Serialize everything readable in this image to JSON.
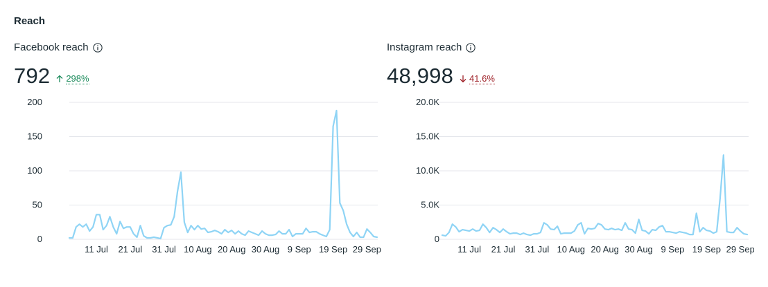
{
  "section": {
    "title": "Reach"
  },
  "colors": {
    "line": "#8fd4f5",
    "up": "#1a8a5a",
    "down": "#a0232a",
    "grid": "#e4e6eb"
  },
  "facebook": {
    "label": "Facebook reach",
    "info_icon": "info-icon",
    "value": "792",
    "delta": {
      "direction": "up",
      "text": "298%",
      "icon": "arrow-up-icon"
    }
  },
  "instagram": {
    "label": "Instagram reach",
    "info_icon": "info-icon",
    "value": "48,998",
    "delta": {
      "direction": "down",
      "text": "41.6%",
      "icon": "arrow-down-icon"
    }
  },
  "chart_data": [
    {
      "type": "line",
      "ylim": [
        0,
        200
      ],
      "yticks": [
        0,
        50,
        100,
        150,
        200
      ],
      "ytick_labels": [
        "0",
        "50",
        "100",
        "150",
        "200"
      ],
      "xtick_labels": [
        "11 Jul",
        "21 Jul",
        "31 Jul",
        "10 Aug",
        "20 Aug",
        "30 Aug",
        "9 Sep",
        "19 Sep",
        "29 Sep"
      ],
      "xtick_index": [
        8,
        18,
        28,
        38,
        48,
        58,
        68,
        78,
        88
      ],
      "grid": true,
      "values": [
        2,
        2,
        18,
        22,
        18,
        22,
        12,
        18,
        36,
        36,
        14,
        20,
        33,
        18,
        8,
        26,
        16,
        18,
        18,
        8,
        3,
        20,
        5,
        2,
        2,
        3,
        2,
        1,
        17,
        20,
        21,
        33,
        70,
        98,
        25,
        10,
        20,
        14,
        20,
        15,
        16,
        10,
        11,
        13,
        11,
        8,
        14,
        10,
        13,
        8,
        12,
        8,
        6,
        12,
        10,
        8,
        6,
        12,
        8,
        6,
        6,
        7,
        12,
        8,
        8,
        14,
        4,
        8,
        8,
        8,
        16,
        10,
        11,
        11,
        8,
        6,
        4,
        14,
        165,
        188,
        53,
        42,
        22,
        10,
        4,
        10,
        3,
        3,
        15,
        10,
        4,
        3
      ]
    },
    {
      "type": "line",
      "ylim": [
        0,
        20000
      ],
      "yticks": [
        0,
        5000,
        10000,
        15000,
        20000
      ],
      "ytick_labels": [
        "0",
        "5.0K",
        "10.0K",
        "15.0K",
        "20.0K"
      ],
      "xtick_labels": [
        "11 Jul",
        "21 Jul",
        "31 Jul",
        "10 Aug",
        "20 Aug",
        "30 Aug",
        "9 Sep",
        "19 Sep",
        "29 Sep"
      ],
      "xtick_index": [
        8,
        18,
        28,
        38,
        48,
        58,
        68,
        78,
        88
      ],
      "grid": true,
      "values": [
        600,
        500,
        1000,
        2200,
        1800,
        1100,
        1400,
        1300,
        1200,
        1500,
        1200,
        1300,
        2200,
        1700,
        1000,
        1700,
        1400,
        1000,
        1500,
        1100,
        800,
        900,
        900,
        700,
        900,
        700,
        600,
        800,
        800,
        1000,
        2400,
        2100,
        1500,
        1400,
        1900,
        800,
        900,
        900,
        900,
        1200,
        2100,
        2400,
        800,
        1600,
        1500,
        1600,
        2300,
        2100,
        1500,
        1400,
        1600,
        1400,
        1500,
        1300,
        2400,
        1500,
        1400,
        900,
        2900,
        1300,
        1200,
        800,
        1400,
        1300,
        1800,
        2000,
        1100,
        1100,
        1000,
        900,
        1100,
        1000,
        900,
        700,
        700,
        3800,
        1100,
        1700,
        1300,
        1200,
        900,
        1100,
        6000,
        12300,
        1100,
        1000,
        1000,
        1700,
        1200,
        800,
        700
      ]
    }
  ]
}
